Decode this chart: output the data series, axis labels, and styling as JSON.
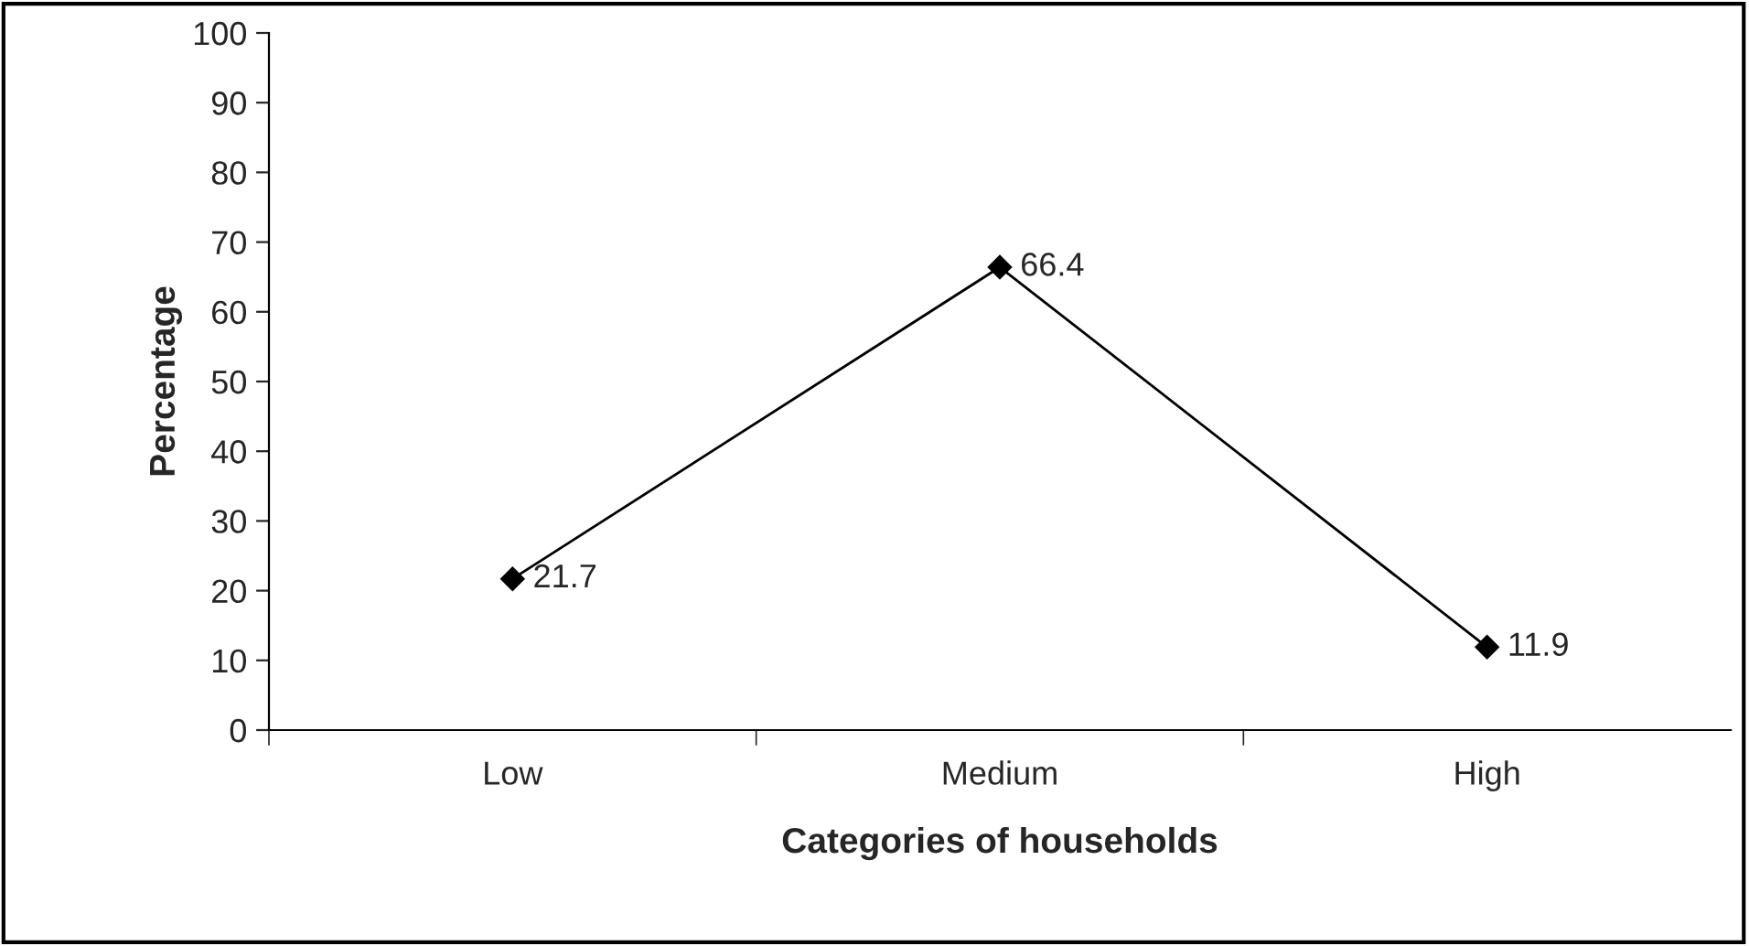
{
  "chart_data": {
    "type": "line",
    "xlabel": "Categories of households",
    "ylabel": "Percentage",
    "categories": [
      "Low",
      "Medium",
      "High"
    ],
    "series": [
      {
        "color": "#000000",
        "values": [
          21.7,
          66.4,
          11.9
        ]
      }
    ],
    "ylim": [
      0,
      100
    ],
    "yticks": [
      0,
      10,
      20,
      30,
      40,
      50,
      60,
      70,
      80,
      90,
      100
    ],
    "marker": "diamond",
    "line_style": "solid",
    "data_labels": true,
    "grid": false,
    "legend": false
  }
}
